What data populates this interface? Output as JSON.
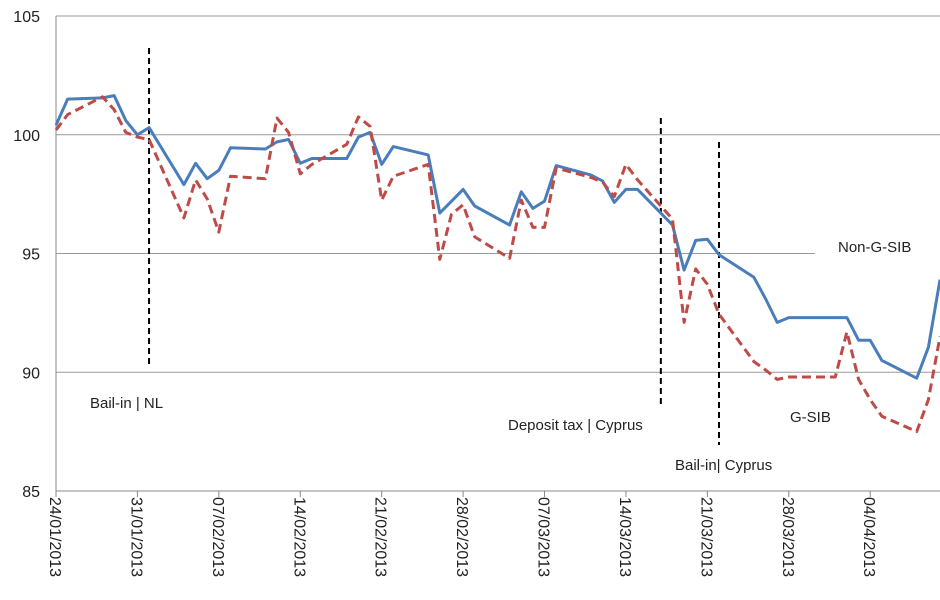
{
  "chart_data": {
    "type": "line",
    "x": [
      "24/01/2013",
      "25/01/2013",
      "28/01/2013",
      "29/01/2013",
      "30/01/2013",
      "31/01/2013",
      "01/02/2013",
      "04/02/2013",
      "05/02/2013",
      "06/02/2013",
      "07/02/2013",
      "08/02/2013",
      "11/02/2013",
      "12/02/2013",
      "13/02/2013",
      "14/02/2013",
      "15/02/2013",
      "18/02/2013",
      "19/02/2013",
      "20/02/2013",
      "21/02/2013",
      "22/02/2013",
      "25/02/2013",
      "26/02/2013",
      "27/02/2013",
      "28/02/2013",
      "01/03/2013",
      "04/03/2013",
      "05/03/2013",
      "06/03/2013",
      "07/03/2013",
      "08/03/2013",
      "11/03/2013",
      "12/03/2013",
      "13/03/2013",
      "14/03/2013",
      "15/03/2013",
      "18/03/2013",
      "19/03/2013",
      "20/03/2013",
      "21/03/2013",
      "22/03/2013",
      "25/03/2013",
      "26/03/2013",
      "27/03/2013",
      "28/03/2013",
      "29/03/2013",
      "01/04/2013",
      "02/04/2013",
      "03/04/2013",
      "04/04/2013",
      "05/04/2013",
      "08/04/2013",
      "09/04/2013",
      "10/04/2013"
    ],
    "series": [
      {
        "name": "Non-G-SIB",
        "color": "#4a7ebb",
        "dashed": false,
        "values": [
          100.4,
          101.5,
          101.55,
          101.65,
          100.6,
          100.0,
          100.3,
          97.9,
          98.8,
          98.15,
          98.5,
          99.45,
          99.4,
          99.7,
          99.8,
          98.8,
          99.0,
          99.0,
          99.9,
          100.1,
          98.75,
          99.5,
          99.15,
          96.7,
          97.2,
          97.7,
          97.0,
          96.2,
          97.6,
          96.9,
          97.2,
          98.7,
          98.3,
          98.05,
          97.15,
          97.7,
          97.7,
          96.2,
          94.3,
          95.55,
          95.6,
          94.95,
          94.0,
          93.1,
          92.1,
          92.3,
          92.3,
          92.3,
          92.3,
          91.35,
          91.35,
          90.5,
          89.75,
          91.05,
          93.9
        ]
      },
      {
        "name": "G-SIB",
        "color": "#be4b48",
        "dashed": true,
        "values": [
          100.2,
          100.85,
          101.6,
          101.05,
          100.1,
          99.9,
          99.8,
          96.5,
          98.1,
          97.3,
          95.9,
          98.25,
          98.15,
          100.7,
          100.1,
          98.35,
          98.75,
          99.6,
          100.75,
          100.35,
          97.25,
          98.25,
          98.75,
          94.75,
          96.65,
          97.05,
          95.7,
          94.8,
          97.25,
          96.1,
          96.1,
          98.6,
          98.2,
          98.0,
          97.4,
          98.75,
          98.1,
          96.45,
          92.1,
          94.35,
          93.7,
          92.45,
          90.45,
          90.1,
          89.7,
          89.8,
          89.8,
          89.8,
          91.7,
          89.7,
          88.85,
          88.15,
          87.5,
          88.85,
          91.5
        ]
      }
    ],
    "events": [
      {
        "label": "Bail-in  | NL",
        "x": "01/02/2013"
      },
      {
        "label": "Deposit tax | Cyprus",
        "x": "17/03/2013"
      },
      {
        "label": "Bail-in| Cyprus",
        "x": "22/03/2013"
      }
    ],
    "xlim": [
      "24/01/2013",
      "10/04/2013"
    ],
    "xticks": [
      "24/01/2013",
      "31/01/2013",
      "07/02/2013",
      "14/02/2013",
      "21/02/2013",
      "28/02/2013",
      "07/03/2013",
      "14/03/2013",
      "21/03/2013",
      "28/03/2013",
      "04/04/2013"
    ],
    "ylim": [
      85,
      105
    ],
    "yticks": [
      85,
      90,
      95,
      100,
      105
    ],
    "grid": true
  }
}
